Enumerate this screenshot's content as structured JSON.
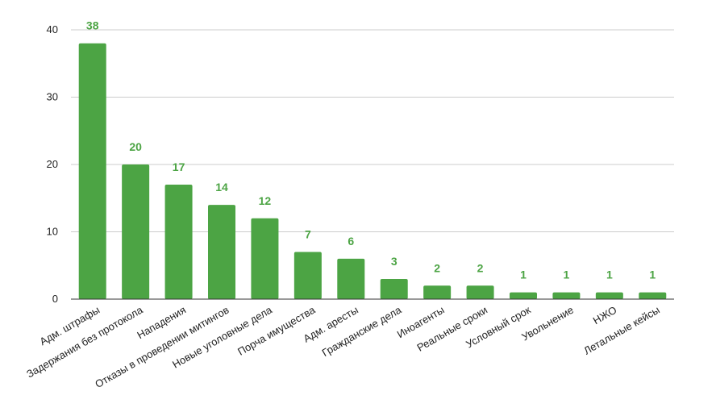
{
  "chart_data": {
    "type": "bar",
    "title": "",
    "xlabel": "",
    "ylabel": "",
    "ylim": [
      0,
      40
    ],
    "yticks": [
      0,
      10,
      20,
      30,
      40
    ],
    "grid": true,
    "legend": "none",
    "bar_color": "#4ca444",
    "label_color": "#4ca444",
    "categories": [
      "Адм. штрафы",
      "Задержания без протокола",
      "Нападения",
      "Отказы в проведении митингов",
      "Новые уголовные дела",
      "Порча имущества",
      "Адм. аресты",
      "Гражданские дела",
      "Иноагенты",
      "Реальные сроки",
      "Условный срок",
      "Увольнение",
      "НЖО",
      "Летальные кейсы"
    ],
    "values": [
      38,
      20,
      17,
      14,
      12,
      7,
      6,
      3,
      2,
      2,
      1,
      1,
      1,
      1
    ]
  }
}
